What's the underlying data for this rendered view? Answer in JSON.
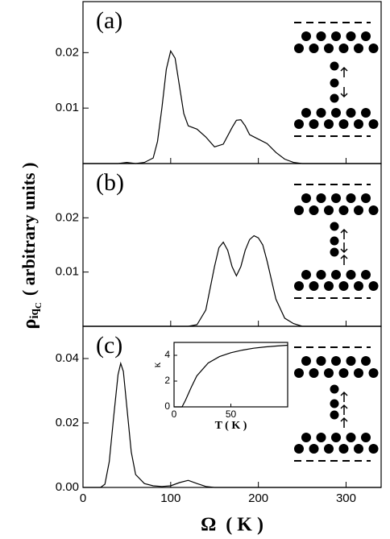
{
  "y_label": {
    "symbol": "ρ",
    "sub": "iq",
    "subsub": "C",
    "units": "( arbitrary units )"
  },
  "chart_data": [
    {
      "type": "line",
      "panel_label": "(a)",
      "color": "#000000",
      "x": [
        0,
        40,
        50,
        60,
        70,
        80,
        85,
        90,
        95,
        100,
        105,
        110,
        115,
        120,
        130,
        140,
        150,
        160,
        170,
        175,
        180,
        185,
        190,
        200,
        210,
        220,
        230,
        240,
        250,
        260,
        340
      ],
      "values": [
        0,
        0,
        0.0002,
        0,
        0.0002,
        0.001,
        0.004,
        0.01,
        0.017,
        0.0203,
        0.019,
        0.014,
        0.009,
        0.0068,
        0.0062,
        0.0048,
        0.003,
        0.0035,
        0.0065,
        0.0078,
        0.0079,
        0.0068,
        0.0052,
        0.0044,
        0.0036,
        0.002,
        0.0008,
        0.0002,
        0,
        0,
        0
      ],
      "xlim": [
        0,
        340
      ],
      "ylim": [
        0,
        0.0292
      ],
      "yticks": [
        0.01,
        0.02
      ]
    },
    {
      "type": "line",
      "panel_label": "(b)",
      "color": "#000000",
      "x": [
        0,
        120,
        130,
        140,
        150,
        155,
        160,
        165,
        170,
        175,
        180,
        185,
        190,
        195,
        200,
        205,
        210,
        220,
        230,
        240,
        250,
        340
      ],
      "values": [
        0,
        0,
        0.0003,
        0.003,
        0.011,
        0.0145,
        0.0155,
        0.014,
        0.011,
        0.0093,
        0.011,
        0.014,
        0.016,
        0.0167,
        0.0163,
        0.015,
        0.012,
        0.005,
        0.0015,
        0.0005,
        0,
        0
      ],
      "xlim": [
        0,
        340
      ],
      "ylim": [
        0,
        0.03
      ],
      "yticks": [
        0.01,
        0.02
      ]
    },
    {
      "type": "line",
      "panel_label": "(c)",
      "color": "#000000",
      "xlabel": "Ω  ( K )",
      "x": [
        0,
        20,
        25,
        30,
        35,
        40,
        43,
        46,
        50,
        55,
        60,
        70,
        80,
        90,
        100,
        110,
        120,
        130,
        140,
        150,
        340
      ],
      "values": [
        0,
        0,
        0.001,
        0.008,
        0.022,
        0.035,
        0.0385,
        0.036,
        0.025,
        0.011,
        0.004,
        0.0012,
        0.0005,
        0.0003,
        0.0005,
        0.0015,
        0.0022,
        0.0012,
        0.0003,
        0,
        0
      ],
      "xlim": [
        0,
        340
      ],
      "ylim": [
        0,
        0.05
      ],
      "xticks": [
        0,
        100,
        200,
        300
      ],
      "yticks": [
        {
          "value": 0,
          "label": "0.00"
        },
        {
          "value": 0.02,
          "label": "0.02"
        },
        {
          "value": 0.04,
          "label": "0.04"
        }
      ]
    },
    {
      "type": "line",
      "inset": true,
      "color": "#000000",
      "xlabel": "T ( K )",
      "ylabel": "κ",
      "x": [
        0,
        7,
        10,
        15,
        20,
        30,
        40,
        50,
        60,
        70,
        80,
        90,
        100
      ],
      "values": [
        0,
        0,
        0.5,
        1.5,
        2.4,
        3.4,
        3.9,
        4.2,
        4.4,
        4.55,
        4.65,
        4.72,
        4.78
      ],
      "xlim": [
        0,
        100
      ],
      "ylim": [
        0,
        5
      ],
      "xticks": [
        0,
        50
      ],
      "yticks": [
        0,
        2,
        4
      ]
    }
  ]
}
